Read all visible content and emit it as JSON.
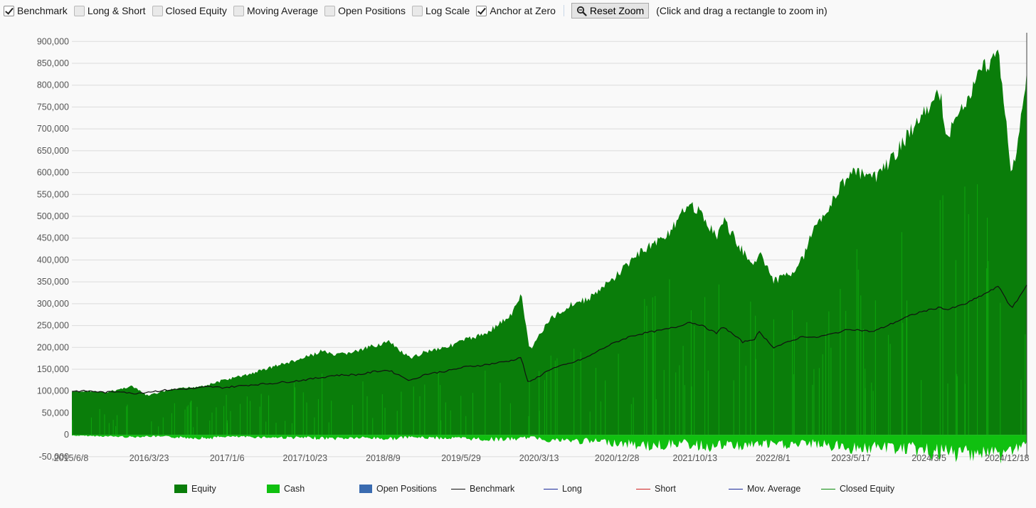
{
  "toolbar": {
    "options": [
      {
        "label": "Benchmark",
        "checked": true
      },
      {
        "label": "Long & Short",
        "checked": false
      },
      {
        "label": "Closed Equity",
        "checked": false
      },
      {
        "label": "Moving Average",
        "checked": false
      },
      {
        "label": "Open Positions",
        "checked": false
      },
      {
        "label": "Log Scale",
        "checked": false
      },
      {
        "label": "Anchor at Zero",
        "checked": true
      }
    ],
    "reset_zoom_label": "Reset Zoom",
    "hint": "(Click and drag a rectangle to zoom in)"
  },
  "legend": [
    {
      "label": "Equity",
      "kind": "box",
      "color": "#0a7d0a"
    },
    {
      "label": "Cash",
      "kind": "box",
      "color": "#10c010"
    },
    {
      "label": "Open Positions",
      "kind": "box",
      "color": "#3a6bb0"
    },
    {
      "label": "Benchmark",
      "kind": "line",
      "color": "#111111"
    },
    {
      "label": "Long",
      "kind": "line",
      "color": "#1a2a9a"
    },
    {
      "label": "Short",
      "kind": "line",
      "color": "#d02020"
    },
    {
      "label": "Mov. Average",
      "kind": "line",
      "color": "#1a2a9a"
    },
    {
      "label": "Closed Equity",
      "kind": "line",
      "color": "#0a8a0a"
    }
  ],
  "chart_data": {
    "type": "area",
    "title": "",
    "xlabel": "",
    "ylabel": "",
    "ylim": [
      -60000,
      920000
    ],
    "grid": true,
    "y_ticks": [
      -50000,
      0,
      50000,
      100000,
      150000,
      200000,
      250000,
      300000,
      350000,
      400000,
      450000,
      500000,
      550000,
      600000,
      650000,
      700000,
      750000,
      800000,
      850000,
      900000
    ],
    "y_tick_labels": [
      "-50,000",
      "0",
      "50,000",
      "100,000",
      "150,000",
      "200,000",
      "250,000",
      "300,000",
      "350,000",
      "400,000",
      "450,000",
      "500,000",
      "550,000",
      "600,000",
      "650,000",
      "700,000",
      "750,000",
      "800,000",
      "850,000",
      "900,000"
    ],
    "x_tick_labels": [
      "2015/6/8",
      "2016/3/23",
      "2017/1/6",
      "2017/10/23",
      "2018/8/9",
      "2019/5/29",
      "2020/3/13",
      "2020/12/28",
      "2021/10/13",
      "2022/8/1",
      "2023/5/17",
      "2024/3/5",
      "2024/12/18"
    ],
    "dates": [
      "2015-06-08",
      "2015-08-15",
      "2015-10-15",
      "2015-12-15",
      "2016-01-20",
      "2016-03-23",
      "2016-06-15",
      "2016-09-15",
      "2016-11-15",
      "2017-01-06",
      "2017-04-15",
      "2017-07-15",
      "2017-10-23",
      "2018-01-26",
      "2018-03-01",
      "2018-06-15",
      "2018-08-09",
      "2018-10-01",
      "2018-12-24",
      "2019-02-15",
      "2019-05-29",
      "2019-07-15",
      "2019-10-01",
      "2020-01-15",
      "2020-02-19",
      "2020-03-13",
      "2020-03-23",
      "2020-06-08",
      "2020-09-02",
      "2020-10-30",
      "2020-12-28",
      "2021-02-15",
      "2021-04-15",
      "2021-06-15",
      "2021-08-15",
      "2021-10-13",
      "2021-11-20",
      "2022-01-03",
      "2022-03-08",
      "2022-04-01",
      "2022-06-16",
      "2022-08-01",
      "2022-08-16",
      "2022-10-12",
      "2022-12-15",
      "2023-02-02",
      "2023-03-15",
      "2023-05-17",
      "2023-07-31",
      "2023-10-27",
      "2023-12-28",
      "2024-03-05",
      "2024-04-19",
      "2024-07-10",
      "2024-08-05",
      "2024-10-15",
      "2024-12-18",
      "2025-02-19",
      "2025-04-08",
      "2025-06-05"
    ],
    "series": [
      {
        "name": "Equity",
        "type": "area",
        "color": "#0a7d0a",
        "values": [
          100000,
          103000,
          99000,
          108000,
          115000,
          92000,
          105000,
          112000,
          118000,
          128000,
          142000,
          160000,
          176000,
          198000,
          185000,
          198000,
          210000,
          218000,
          178000,
          195000,
          210000,
          222000,
          236000,
          282000,
          330000,
          238000,
          200000,
          270000,
          308000,
          318000,
          345000,
          372000,
          410000,
          440000,
          462000,
          500000,
          550000,
          520000,
          465000,
          505000,
          430000,
          400000,
          435000,
          360000,
          380000,
          415000,
          490000,
          540000,
          620000,
          600000,
          640000,
          700000,
          740000,
          800000,
          700000,
          780000,
          860000,
          900000,
          600000,
          840000
        ]
      },
      {
        "name": "Cash",
        "type": "area",
        "color": "#10c010",
        "values": [
          -2000,
          -3000,
          -4000,
          -5000,
          -6000,
          -4000,
          -6000,
          -8000,
          -9000,
          -5000,
          -6000,
          -7000,
          -8000,
          -9000,
          -10000,
          -8000,
          -9000,
          -11000,
          -6000,
          -8000,
          -9000,
          -10000,
          -12000,
          -12000,
          -10000,
          -8000,
          -6000,
          -14000,
          -16000,
          -18000,
          -18000,
          -22000,
          -26000,
          -30000,
          -28000,
          -22000,
          -26000,
          -30000,
          -32000,
          -28000,
          -30000,
          -26000,
          -24000,
          -28000,
          -26000,
          -26000,
          -24000,
          -30000,
          -34000,
          -36000,
          -34000,
          -38000,
          -42000,
          -50000,
          -56000,
          -46000,
          -48000,
          -55000,
          -40000,
          -30000
        ]
      },
      {
        "name": "Benchmark",
        "type": "line",
        "color": "#111111",
        "values": [
          100000,
          100000,
          97000,
          100000,
          94000,
          98000,
          103000,
          106000,
          110000,
          108000,
          114000,
          118000,
          124000,
          132000,
          136000,
          138000,
          145000,
          148000,
          124000,
          138000,
          148000,
          155000,
          160000,
          170000,
          178000,
          125000,
          120000,
          150000,
          165000,
          178000,
          198000,
          212000,
          226000,
          234000,
          240000,
          248000,
          258000,
          252000,
          232000,
          248000,
          212000,
          220000,
          236000,
          200000,
          214000,
          226000,
          222000,
          230000,
          242000,
          236000,
          252000,
          270000,
          280000,
          292000,
          286000,
          300000,
          320000,
          340000,
          288000,
          342000
        ]
      }
    ]
  }
}
